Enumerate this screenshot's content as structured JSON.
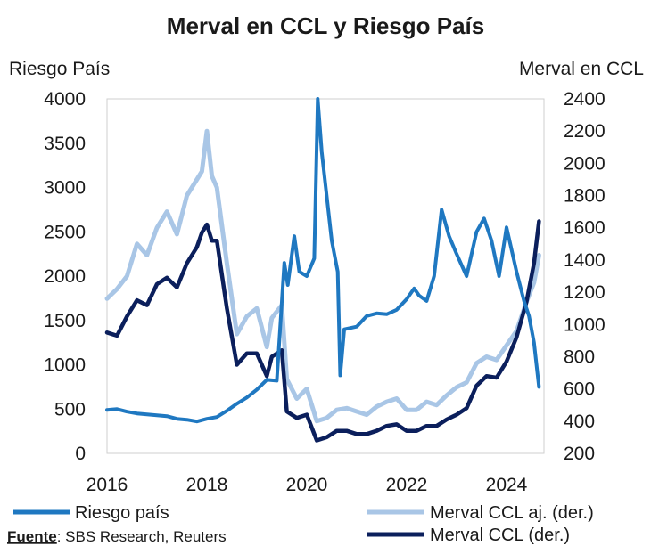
{
  "chart_data": {
    "type": "line",
    "title": "Merval en CCL y Riesgo País",
    "left_axis_label": "Riesgo País",
    "right_axis_label": "Merval en CCL",
    "x_ticks": [
      "2016",
      "2018",
      "2020",
      "2022",
      "2024"
    ],
    "x_range": [
      2016.0,
      2024.75
    ],
    "left_ylim": [
      0,
      4000
    ],
    "left_ticks": [
      0,
      500,
      1000,
      1500,
      2000,
      2500,
      3000,
      3500,
      4000
    ],
    "right_ylim": [
      200,
      2400
    ],
    "right_ticks": [
      200,
      400,
      600,
      800,
      1000,
      1200,
      1400,
      1600,
      1800,
      2000,
      2200,
      2400
    ],
    "series": [
      {
        "name": "Merval CCL aj. (der.)",
        "axis": "right",
        "color": "#a9c6e6",
        "x": [
          2016.0,
          2016.2,
          2016.4,
          2016.6,
          2016.8,
          2017.0,
          2017.2,
          2017.4,
          2017.6,
          2017.8,
          2017.9,
          2018.0,
          2018.1,
          2018.2,
          2018.4,
          2018.6,
          2018.8,
          2019.0,
          2019.2,
          2019.3,
          2019.5,
          2019.6,
          2019.8,
          2020.0,
          2020.2,
          2020.4,
          2020.6,
          2020.8,
          2021.0,
          2021.2,
          2021.4,
          2021.6,
          2021.8,
          2022.0,
          2022.2,
          2022.4,
          2022.6,
          2022.8,
          2023.0,
          2023.2,
          2023.4,
          2023.6,
          2023.8,
          2024.0,
          2024.2,
          2024.4,
          2024.55,
          2024.65
        ],
        "y": [
          1160,
          1220,
          1300,
          1500,
          1430,
          1600,
          1700,
          1560,
          1800,
          1900,
          1950,
          2200,
          1920,
          1850,
          1380,
          940,
          1050,
          1100,
          860,
          1040,
          1120,
          660,
          540,
          600,
          400,
          420,
          470,
          480,
          460,
          440,
          490,
          520,
          540,
          470,
          470,
          520,
          500,
          560,
          610,
          640,
          760,
          800,
          780,
          870,
          960,
          1140,
          1260,
          1430
        ]
      },
      {
        "name": "Merval CCL (der.)",
        "axis": "right",
        "color": "#0b1f5c",
        "x": [
          2016.0,
          2016.2,
          2016.4,
          2016.6,
          2016.8,
          2017.0,
          2017.2,
          2017.4,
          2017.6,
          2017.8,
          2017.9,
          2018.0,
          2018.1,
          2018.2,
          2018.4,
          2018.6,
          2018.8,
          2019.0,
          2019.2,
          2019.3,
          2019.5,
          2019.6,
          2019.8,
          2020.0,
          2020.2,
          2020.4,
          2020.6,
          2020.8,
          2021.0,
          2021.2,
          2021.4,
          2021.6,
          2021.8,
          2022.0,
          2022.2,
          2022.4,
          2022.6,
          2022.8,
          2023.0,
          2023.2,
          2023.4,
          2023.6,
          2023.8,
          2024.0,
          2024.2,
          2024.4,
          2024.55,
          2024.65
        ],
        "y": [
          950,
          930,
          1050,
          1150,
          1120,
          1250,
          1290,
          1230,
          1380,
          1480,
          1570,
          1620,
          1520,
          1520,
          1100,
          750,
          820,
          820,
          680,
          800,
          840,
          460,
          420,
          440,
          280,
          300,
          340,
          340,
          320,
          320,
          340,
          370,
          380,
          340,
          340,
          370,
          370,
          410,
          440,
          480,
          620,
          680,
          670,
          770,
          920,
          1140,
          1380,
          1640
        ]
      },
      {
        "name": "Riesgo país",
        "axis": "left",
        "color": "#1f78c1",
        "x": [
          2016.0,
          2016.2,
          2016.4,
          2016.6,
          2016.8,
          2017.0,
          2017.2,
          2017.4,
          2017.6,
          2017.8,
          2018.0,
          2018.2,
          2018.4,
          2018.6,
          2018.8,
          2019.0,
          2019.2,
          2019.4,
          2019.55,
          2019.62,
          2019.75,
          2019.85,
          2020.0,
          2020.15,
          2020.22,
          2020.3,
          2020.5,
          2020.62,
          2020.67,
          2020.75,
          2021.0,
          2021.2,
          2021.4,
          2021.6,
          2021.8,
          2022.0,
          2022.15,
          2022.25,
          2022.4,
          2022.55,
          2022.7,
          2022.85,
          2023.0,
          2023.2,
          2023.4,
          2023.55,
          2023.7,
          2023.85,
          2024.0,
          2024.2,
          2024.35,
          2024.45,
          2024.55,
          2024.65
        ],
        "y": [
          490,
          500,
          470,
          450,
          440,
          430,
          420,
          390,
          380,
          360,
          390,
          410,
          480,
          560,
          630,
          720,
          830,
          820,
          2150,
          1900,
          2450,
          2050,
          2000,
          2200,
          4000,
          3400,
          2400,
          2050,
          880,
          1400,
          1430,
          1550,
          1580,
          1570,
          1620,
          1740,
          1860,
          1780,
          1720,
          2000,
          2750,
          2450,
          2250,
          2000,
          2500,
          2650,
          2400,
          2000,
          2550,
          2050,
          1720,
          1550,
          1250,
          750
        ]
      }
    ],
    "legend": [
      {
        "label": "Riesgo país",
        "color": "#1f78c1"
      },
      {
        "label": "Merval CCL aj. (der.)",
        "color": "#a9c6e6"
      },
      {
        "label": "Merval CCL (der.)",
        "color": "#0b1f5c"
      }
    ],
    "source_label": "Fuente",
    "source_text": ": SBS Research, Reuters"
  }
}
